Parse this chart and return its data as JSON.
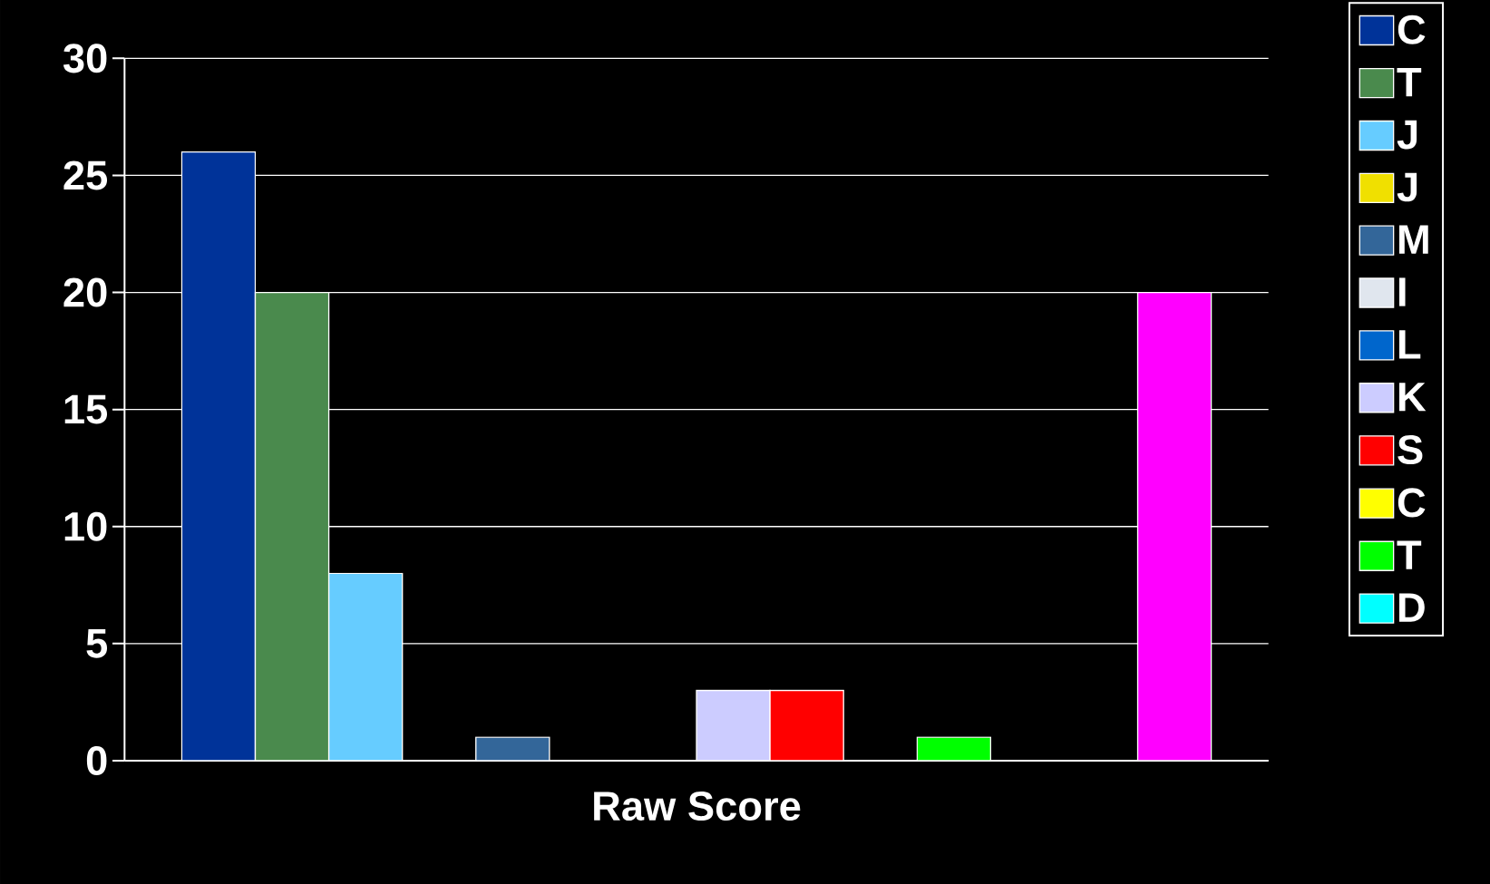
{
  "chart_data": {
    "type": "bar",
    "categories": [
      "Raw Score"
    ],
    "series": [
      {
        "name": "C",
        "color": "#003399",
        "values": [
          26
        ]
      },
      {
        "name": "T",
        "color": "#4a8a4d",
        "values": [
          20
        ]
      },
      {
        "name": "J",
        "color": "#66ccff",
        "values": [
          8
        ]
      },
      {
        "name": "J",
        "color": "#f0e000",
        "values": [
          0
        ]
      },
      {
        "name": "M",
        "color": "#336699",
        "values": [
          1
        ]
      },
      {
        "name": "I",
        "color": "#e0e6ee",
        "values": [
          0
        ]
      },
      {
        "name": "L",
        "color": "#0066cc",
        "values": [
          0
        ]
      },
      {
        "name": "K",
        "color": "#ccccff",
        "values": [
          3
        ]
      },
      {
        "name": "S",
        "color": "#ff0000",
        "values": [
          3
        ]
      },
      {
        "name": "C",
        "color": "#ffff00",
        "values": [
          0
        ]
      },
      {
        "name": "T",
        "color": "#00ff00",
        "values": [
          1
        ]
      },
      {
        "name": "D",
        "color": "#00ffff",
        "values": [
          0
        ]
      },
      {
        "color": "#0000cc",
        "values": [
          0
        ]
      },
      {
        "color": "#ff00ff",
        "values": [
          20
        ]
      }
    ],
    "ylim": [
      0,
      30
    ],
    "yticks": [
      0,
      5,
      10,
      15,
      20,
      25,
      30
    ],
    "grid": "y",
    "legend": "right"
  }
}
